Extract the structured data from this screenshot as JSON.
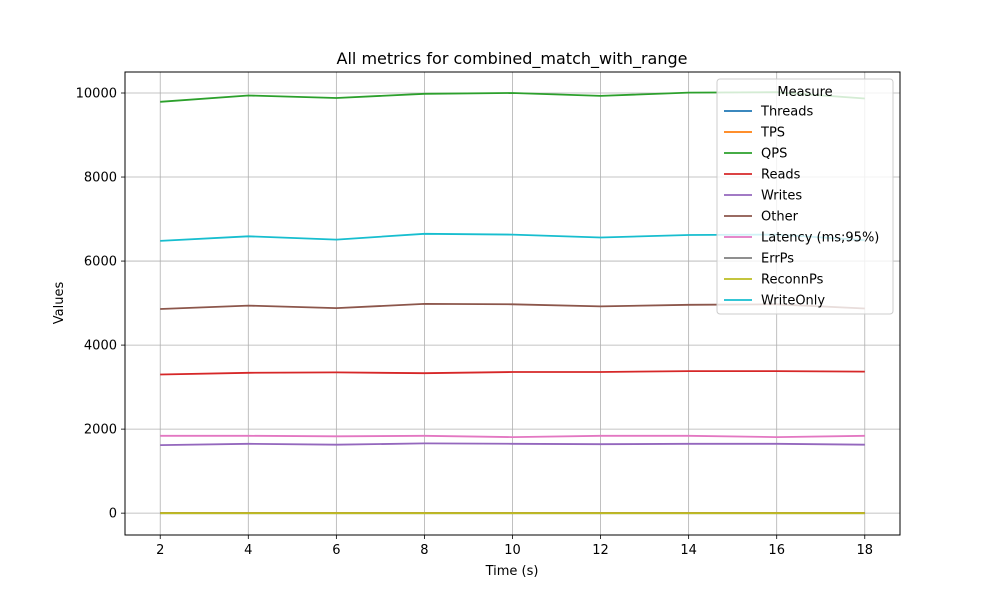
{
  "chart_data": {
    "type": "line",
    "title": "All metrics for combined_match_with_range",
    "xlabel": "Time (s)",
    "ylabel": "Values",
    "x": [
      2,
      4,
      6,
      8,
      10,
      12,
      14,
      16,
      18
    ],
    "xticks": [
      2,
      4,
      6,
      8,
      10,
      12,
      14,
      16,
      18
    ],
    "yticks": [
      0,
      2000,
      4000,
      6000,
      8000,
      10000
    ],
    "xlim": [
      1.2,
      18.8
    ],
    "ylim": [
      -520,
      10500
    ],
    "grid": true,
    "legend": {
      "title": "Measure",
      "placement": "top-right"
    },
    "series": [
      {
        "name": "Threads",
        "color": "#1f77b4",
        "values": [
          4,
          4,
          4,
          4,
          4,
          4,
          4,
          4,
          4
        ]
      },
      {
        "name": "TPS",
        "color": "#ff7f0e",
        "values": [
          4.9,
          4.9,
          4.9,
          5.0,
          5.0,
          5.0,
          5.0,
          5.0,
          4.9
        ]
      },
      {
        "name": "QPS",
        "color": "#2ca02c",
        "values": [
          9790,
          9940,
          9880,
          9980,
          10000,
          9930,
          10010,
          10020,
          9870
        ]
      },
      {
        "name": "Reads",
        "color": "#d62728",
        "values": [
          3300,
          3340,
          3350,
          3330,
          3360,
          3360,
          3380,
          3380,
          3370
        ]
      },
      {
        "name": "Writes",
        "color": "#9467bd",
        "values": [
          1620,
          1650,
          1630,
          1660,
          1650,
          1640,
          1650,
          1650,
          1630
        ]
      },
      {
        "name": "Other",
        "color": "#8c564b",
        "values": [
          4860,
          4940,
          4880,
          4980,
          4970,
          4920,
          4960,
          4970,
          4870
        ]
      },
      {
        "name": "Latency (ms;95%)",
        "color": "#e377c2",
        "values": [
          1840,
          1840,
          1830,
          1840,
          1810,
          1840,
          1840,
          1810,
          1840
        ]
      },
      {
        "name": "ErrPs",
        "color": "#7f7f7f",
        "values": [
          0,
          0,
          0,
          0,
          0,
          0,
          0,
          0,
          0
        ]
      },
      {
        "name": "ReconnPs",
        "color": "#bcbd22",
        "values": [
          0,
          0,
          0,
          0,
          0,
          0,
          0,
          0,
          0
        ]
      },
      {
        "name": "WriteOnly",
        "color": "#17becf",
        "values": [
          6480,
          6590,
          6510,
          6650,
          6630,
          6560,
          6620,
          6630,
          6500
        ]
      }
    ]
  }
}
